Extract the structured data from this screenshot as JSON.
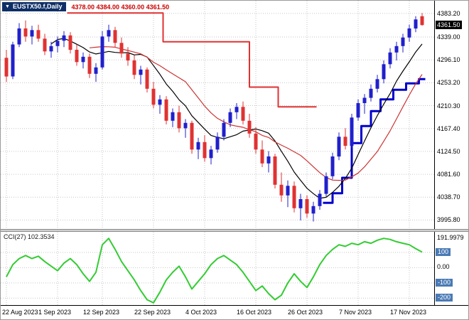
{
  "header": {
    "dropdown_icon": "▼",
    "symbol": "EUSTX50.f,Daily",
    "ohlc": "4378.00 4384.00 4360.00 4361.50"
  },
  "colors": {
    "up": "#2020cc",
    "down": "#e03232",
    "grid": "#c6c6c6",
    "ma_fast": "#000000",
    "ma_slow": "#cc3333",
    "resistance": "#e03232",
    "support": "#0000cc",
    "cci_line": "#33cc33",
    "header_bg": "#0e2f66",
    "ohlc_text": "#cc0000",
    "price_tag_bg": "#000000",
    "level_tag_bg": "#4a7ab5"
  },
  "price_axis": {
    "ticks": [
      "4383.20",
      "4339.00",
      "4296.10",
      "4253.20",
      "4210.30",
      "4167.40",
      "4124.50",
      "4081.60",
      "4038.70",
      "3995.80"
    ],
    "current": "4361.50",
    "current_value": 4361.5
  },
  "cci_pane": {
    "label": "CCI(27) 102.3534",
    "axis_labels": [
      {
        "text": "191.9979",
        "value": 191.9979,
        "boxed": false
      },
      {
        "text": "100",
        "value": 100,
        "boxed": true
      },
      {
        "text": "0.00",
        "value": 0,
        "boxed": false
      },
      {
        "text": "-100",
        "value": -100,
        "boxed": true
      },
      {
        "text": "-200",
        "value": -200,
        "boxed": true
      }
    ]
  },
  "chart_data": [
    {
      "type": "candlestick",
      "symbol": "EUSTX50.f",
      "timeframe": "Daily",
      "ylim": [
        3979,
        4407
      ],
      "x_labels": [
        {
          "i": 0,
          "label": "22 Aug 2023"
        },
        {
          "i": 8,
          "label": "1 Sep 2023"
        },
        {
          "i": 15,
          "label": "12 Sep 2023"
        },
        {
          "i": 23,
          "label": "22 Sep 2023"
        },
        {
          "i": 31,
          "label": "4 Oct 2023"
        },
        {
          "i": 39,
          "label": "16 Oct 2023"
        },
        {
          "i": 47,
          "label": "26 Oct 2023"
        },
        {
          "i": 55,
          "label": "7 Nov 2023"
        },
        {
          "i": 63,
          "label": "17 Nov 2023"
        }
      ],
      "ohlc": [
        [
          4300,
          4315,
          4255,
          4265
        ],
        [
          4265,
          4330,
          4260,
          4325
        ],
        [
          4325,
          4365,
          4320,
          4355
        ],
        [
          4355,
          4370,
          4330,
          4340
        ],
        [
          4340,
          4360,
          4325,
          4352
        ],
        [
          4352,
          4362,
          4330,
          4336
        ],
        [
          4336,
          4345,
          4305,
          4312
        ],
        [
          4312,
          4330,
          4300,
          4322
        ],
        [
          4322,
          4340,
          4310,
          4332
        ],
        [
          4332,
          4350,
          4320,
          4342
        ],
        [
          4342,
          4348,
          4308,
          4315
        ],
        [
          4315,
          4325,
          4285,
          4292
        ],
        [
          4292,
          4310,
          4280,
          4302
        ],
        [
          4302,
          4308,
          4262,
          4270
        ],
        [
          4270,
          4290,
          4255,
          4282
        ],
        [
          4282,
          4350,
          4278,
          4340
        ],
        [
          4340,
          4362,
          4330,
          4352
        ],
        [
          4352,
          4358,
          4320,
          4328
        ],
        [
          4328,
          4338,
          4300,
          4308
        ],
        [
          4308,
          4320,
          4285,
          4295
        ],
        [
          4295,
          4305,
          4260,
          4268
        ],
        [
          4268,
          4285,
          4250,
          4278
        ],
        [
          4278,
          4282,
          4235,
          4242
        ],
        [
          4242,
          4255,
          4205,
          4212
        ],
        [
          4212,
          4230,
          4195,
          4222
        ],
        [
          4222,
          4228,
          4175,
          4182
        ],
        [
          4182,
          4205,
          4170,
          4198
        ],
        [
          4198,
          4210,
          4160,
          4168
        ],
        [
          4168,
          4185,
          4150,
          4178
        ],
        [
          4178,
          4182,
          4120,
          4128
        ],
        [
          4128,
          4150,
          4110,
          4142
        ],
        [
          4142,
          4155,
          4105,
          4112
        ],
        [
          4112,
          4135,
          4100,
          4128
        ],
        [
          4128,
          4160,
          4122,
          4152
        ],
        [
          4152,
          4185,
          4145,
          4178
        ],
        [
          4178,
          4205,
          4170,
          4198
        ],
        [
          4198,
          4215,
          4185,
          4208
        ],
        [
          4208,
          4218,
          4175,
          4182
        ],
        [
          4182,
          4195,
          4150,
          4158
        ],
        [
          4158,
          4170,
          4120,
          4128
        ],
        [
          4128,
          4145,
          4095,
          4102
        ],
        [
          4102,
          4125,
          4085,
          4115
        ],
        [
          4115,
          4120,
          4055,
          4062
        ],
        [
          4062,
          4085,
          4030,
          4042
        ],
        [
          4042,
          4070,
          4020,
          4060
        ],
        [
          4060,
          4068,
          4010,
          4018
        ],
        [
          4018,
          4045,
          3995,
          4035
        ],
        [
          4035,
          4042,
          4000,
          4008
        ],
        [
          4008,
          4030,
          3993,
          4022
        ],
        [
          4022,
          4052,
          4015,
          4045
        ],
        [
          4045,
          4085,
          4040,
          4078
        ],
        [
          4078,
          4122,
          4072,
          4115
        ],
        [
          4115,
          4160,
          4108,
          4152
        ],
        [
          4152,
          4168,
          4128,
          4135
        ],
        [
          4135,
          4195,
          4130,
          4188
        ],
        [
          4188,
          4222,
          4182,
          4215
        ],
        [
          4215,
          4232,
          4195,
          4225
        ],
        [
          4225,
          4250,
          4218,
          4242
        ],
        [
          4242,
          4268,
          4235,
          4260
        ],
        [
          4260,
          4295,
          4252,
          4288
        ],
        [
          4288,
          4318,
          4280,
          4310
        ],
        [
          4310,
          4330,
          4295,
          4322
        ],
        [
          4322,
          4345,
          4310,
          4338
        ],
        [
          4338,
          4362,
          4330,
          4355
        ],
        [
          4355,
          4378,
          4348,
          4372
        ],
        [
          4378,
          4384,
          4360,
          4361.5
        ]
      ],
      "overlays": {
        "ma_fast": {
          "type": "sma",
          "period": 8
        },
        "ma_slow": {
          "type": "sma",
          "period": 14
        },
        "resistance_steps": {
          "points": [
            [
              9.5,
              4384
            ],
            [
              24.5,
              4384
            ],
            [
              24.5,
              4330
            ],
            [
              38,
              4330
            ],
            [
              38,
              4245
            ],
            [
              42.5,
              4245
            ],
            [
              42.5,
              4208
            ],
            [
              48.5,
              4208
            ]
          ]
        },
        "support_steps": {
          "points": [
            [
              49.5,
              4028
            ],
            [
              51,
              4028
            ],
            [
              51,
              4046
            ],
            [
              52.5,
              4046
            ],
            [
              52.5,
              4075
            ],
            [
              54,
              4075
            ],
            [
              54,
              4140
            ],
            [
              55.5,
              4140
            ],
            [
              55.5,
              4172
            ],
            [
              57,
              4172
            ],
            [
              57,
              4200
            ],
            [
              58.5,
              4200
            ],
            [
              58.5,
              4222
            ],
            [
              60.5,
              4222
            ],
            [
              60.5,
              4240
            ],
            [
              62.5,
              4240
            ],
            [
              62.5,
              4252
            ],
            [
              64.5,
              4252
            ],
            [
              64.5,
              4260
            ],
            [
              65.5,
              4260
            ]
          ]
        }
      }
    },
    {
      "type": "line",
      "name": "CCI(27)",
      "current": 102.3534,
      "ylim": [
        -245,
        235
      ],
      "levels": [
        100,
        0,
        -100,
        -200
      ],
      "values": [
        -60,
        20,
        60,
        80,
        60,
        75,
        40,
        10,
        -20,
        30,
        60,
        20,
        -40,
        -90,
        -30,
        150,
        192,
        120,
        40,
        -20,
        -80,
        -150,
        -210,
        -230,
        -160,
        -80,
        -30,
        10,
        -60,
        -140,
        -90,
        -40,
        20,
        60,
        80,
        50,
        20,
        -30,
        -90,
        -150,
        -120,
        -170,
        -210,
        -180,
        -100,
        -40,
        -90,
        -130,
        -60,
        20,
        80,
        120,
        150,
        140,
        160,
        150,
        170,
        160,
        180,
        191.9979,
        185,
        170,
        160,
        150,
        125,
        102.3534
      ]
    }
  ]
}
